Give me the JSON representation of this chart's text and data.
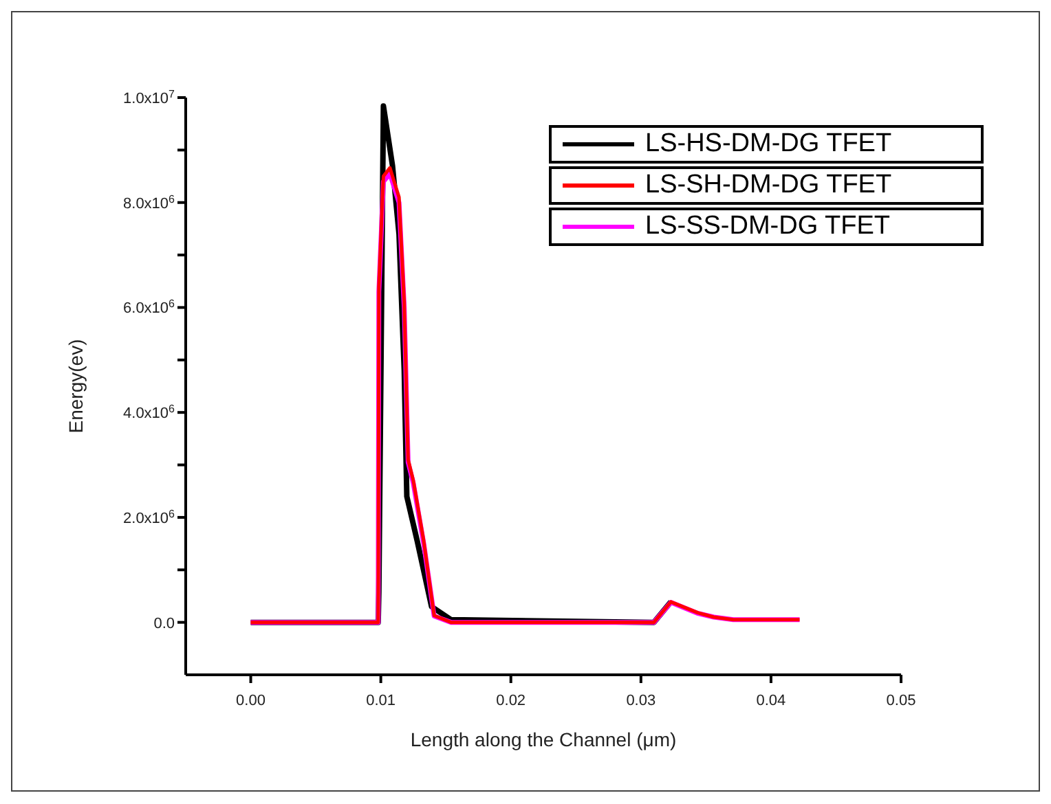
{
  "chart_data": {
    "type": "line",
    "xlabel": "Length along the Channel (μm)",
    "ylabel": "Energy(ev)",
    "xlim": [
      -0.005,
      0.05
    ],
    "xticks": [
      {
        "value": 0,
        "label": "0.00"
      },
      0.01,
      0.02,
      0.03,
      0.04,
      {
        "value": 0.05,
        "label": "0.05"
      }
    ],
    "ylim": [
      -1000000,
      10000000
    ],
    "yticks": [
      {
        "value": 0,
        "label": "0.0"
      },
      {
        "value": 1000000,
        "label": null
      },
      {
        "value": 2000000,
        "label": "2.0x10$^{6}$"
      },
      {
        "value": 3000000,
        "label": null
      },
      {
        "value": 4000000,
        "label": "4.0x10$^{6}$"
      },
      {
        "value": 5000000,
        "label": null
      },
      {
        "value": 6000000,
        "label": "6.0x10$^{6}$"
      },
      {
        "value": 7000000,
        "label": null
      },
      {
        "value": 8000000,
        "label": "8.0x10$^{6}$"
      },
      {
        "value": 9000000,
        "label": null
      },
      {
        "value": 10000000,
        "label": "1.0x10$^{7}$"
      }
    ],
    "legend": "top right",
    "marker": "none",
    "line_style": "solid",
    "series": [
      {
        "name": "LS-HS-DM-DG TFET",
        "color": "#000000",
        "x": [
          0,
          0.0098,
          0.00985,
          0.0102,
          0.0109,
          0.0114,
          0.0118,
          0.012,
          0.0128,
          0.0139,
          0.0154,
          0.031,
          0.0323
        ],
        "values": [
          0,
          0,
          580000,
          9840000,
          8700000,
          7400000,
          4800000,
          2400000,
          1550000,
          300000,
          50000,
          0,
          390000
        ]
      },
      {
        "name": "LS-SH-DM-DG TFET",
        "color": "#ff0000",
        "x": [
          0,
          0.0098,
          0.00985,
          0.0102,
          0.0107,
          0.0114,
          0.0118,
          0.0121,
          0.0125,
          0.0133,
          0.0141,
          0.0154,
          0.031,
          0.0323,
          0.0344,
          0.0356,
          0.0371,
          0.0422
        ],
        "values": [
          0,
          0,
          6400000,
          8500000,
          8660000,
          8100000,
          6100000,
          3100000,
          2700000,
          1550000,
          130000,
          0,
          0,
          390000,
          180000,
          100000,
          50000,
          50000
        ]
      },
      {
        "name": "LS-SS-DM-DG TFET",
        "color": "#ff00ff",
        "x": [
          0,
          0.0098,
          0.00985,
          0.0102,
          0.0107,
          0.0114,
          0.0118,
          0.0121,
          0.0125,
          0.0133,
          0.0141,
          0.0154,
          0.031,
          0.0323,
          0.0344,
          0.0356,
          0.0371,
          0.0422
        ],
        "values": [
          0,
          0,
          6300000,
          8400000,
          8550000,
          8000000,
          6000000,
          3050000,
          2650000,
          1500000,
          120000,
          0,
          0,
          380000,
          170000,
          100000,
          50000,
          50000
        ]
      }
    ]
  }
}
